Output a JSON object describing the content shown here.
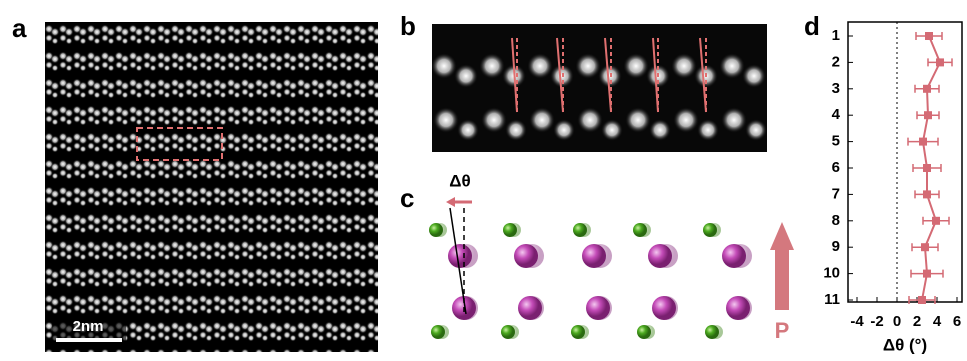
{
  "panel_labels": {
    "a": "a",
    "b": "b",
    "c": "c",
    "d": "d"
  },
  "scale_bar": "2nm",
  "delta_theta_label": "Δθ",
  "polarization_label": "P",
  "chart_data": {
    "type": "scatter",
    "orientation": "horizontal",
    "xlabel": "Δθ (°)",
    "categories": [
      "1",
      "2",
      "3",
      "4",
      "5",
      "6",
      "7",
      "8",
      "9",
      "10",
      "11"
    ],
    "values": [
      3.2,
      4.3,
      3.0,
      3.1,
      2.6,
      3.0,
      3.0,
      3.9,
      2.8,
      3.0,
      2.5
    ],
    "errors": [
      1.3,
      1.2,
      1.2,
      1.1,
      1.5,
      1.4,
      1.2,
      1.3,
      1.3,
      1.6,
      1.3
    ],
    "color": "#d46a74",
    "xlim": [
      -4.9,
      6.5
    ],
    "xticks": [
      -4,
      -2,
      0,
      2,
      4,
      6
    ],
    "zero_line": true
  }
}
